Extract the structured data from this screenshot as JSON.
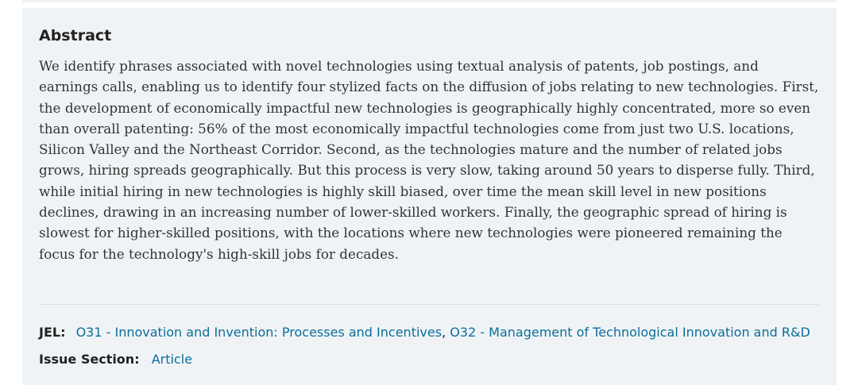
{
  "abstract": {
    "heading": "Abstract",
    "text": "We identify phrases associated with novel technologies using textual analysis of patents, job postings, and earnings calls, enabling us to identify four stylized facts on the diffusion of jobs relating to new technologies. First, the development of economically impactful new technologies is geographically highly concentrated, more so even than overall patenting: 56% of the most economically impactful technologies come from just two U.S. locations, Silicon Valley and the Northeast Corridor. Second, as the technologies mature and the number of related jobs grows, hiring spreads geographically. But this process is very slow, taking around 50 years to disperse fully. Third, while initial hiring in new technologies is highly skill biased, over time the mean skill level in new positions declines, drawing in an increasing number of lower-skilled workers. Finally, the geographic spread of hiring is slowest for higher-skilled positions, with the locations where new technologies were pioneered remaining the focus for the technology's high-skill jobs for decades."
  },
  "jel": {
    "label": "JEL:",
    "codes": [
      "O31 - Innovation and Invention: Processes and Incentives",
      "O32 - Management of Technological Innovation and R&D"
    ],
    "separator": ","
  },
  "issue_section": {
    "label": "Issue Section:",
    "value": "Article"
  },
  "colors": {
    "panel_background": "#f0f3f6",
    "link": "#0b6e99",
    "text": "#333333"
  }
}
